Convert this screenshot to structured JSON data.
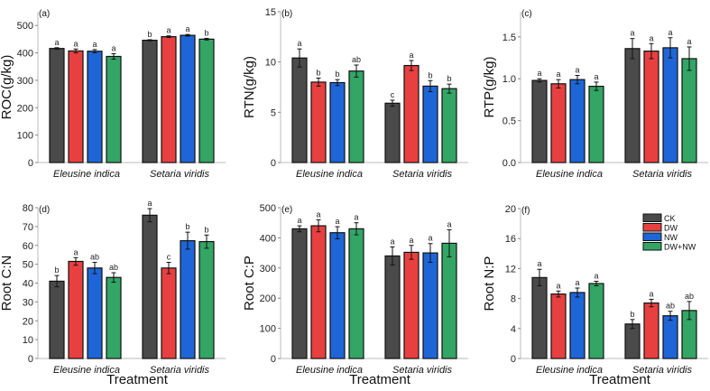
{
  "chart_data": [
    {
      "panel": "(a)",
      "type": "bar",
      "ylabel": "ROC(g/kg)",
      "xlabel": "",
      "ylim": [
        0,
        550
      ],
      "yticks": [
        0,
        100,
        200,
        300,
        400,
        500
      ],
      "categories": [
        "Eleusine indica",
        "Setaria viridis"
      ],
      "series": [
        {
          "name": "CK",
          "values": [
            416,
            446
          ],
          "errors": [
            3,
            2
          ],
          "letters": [
            "a",
            "b"
          ]
        },
        {
          "name": "DW",
          "values": [
            407,
            459
          ],
          "errors": [
            7,
            3
          ],
          "letters": [
            "a",
            "a"
          ]
        },
        {
          "name": "NW",
          "values": [
            406,
            464
          ],
          "errors": [
            6,
            3
          ],
          "letters": [
            "a",
            "a"
          ]
        },
        {
          "name": "DW+NW",
          "values": [
            387,
            450
          ],
          "errors": [
            10,
            3
          ],
          "letters": [
            "a",
            "b"
          ]
        }
      ]
    },
    {
      "panel": "(b)",
      "type": "bar",
      "ylabel": "RTN(g/kg)",
      "xlabel": "",
      "ylim": [
        0,
        15
      ],
      "yticks": [
        0,
        5,
        10,
        15
      ],
      "categories": [
        "Eleusine indica",
        "Setaria viridis"
      ],
      "series": [
        {
          "name": "CK",
          "values": [
            10.4,
            5.9
          ],
          "errors": [
            0.9,
            0.3
          ],
          "letters": [
            "a",
            "c"
          ]
        },
        {
          "name": "DW",
          "values": [
            8.0,
            9.65
          ],
          "errors": [
            0.4,
            0.5
          ],
          "letters": [
            "b",
            "a"
          ]
        },
        {
          "name": "NW",
          "values": [
            7.95,
            7.6
          ],
          "errors": [
            0.3,
            0.55
          ],
          "letters": [
            "b",
            "b"
          ]
        },
        {
          "name": "DW+NW",
          "values": [
            9.1,
            7.35
          ],
          "errors": [
            0.6,
            0.45
          ],
          "letters": [
            "ab",
            "b"
          ]
        }
      ]
    },
    {
      "panel": "(c)",
      "type": "bar",
      "ylabel": "RTP(g/kg)",
      "xlabel": "",
      "ylim": [
        0,
        1.8
      ],
      "yticks": [
        "0.0",
        "0.5",
        "1.0",
        "1.5"
      ],
      "categories": [
        "Eleusine indica",
        "Setaria viridis"
      ],
      "series": [
        {
          "name": "CK",
          "values": [
            0.98,
            1.36
          ],
          "errors": [
            0.02,
            0.12
          ],
          "letters": [
            "a",
            "a"
          ]
        },
        {
          "name": "DW",
          "values": [
            0.94,
            1.33
          ],
          "errors": [
            0.05,
            0.09
          ],
          "letters": [
            "a",
            "a"
          ]
        },
        {
          "name": "NW",
          "values": [
            0.99,
            1.37
          ],
          "errors": [
            0.05,
            0.12
          ],
          "letters": [
            "a",
            "a"
          ]
        },
        {
          "name": "DW+NW",
          "values": [
            0.91,
            1.24
          ],
          "errors": [
            0.05,
            0.14
          ],
          "letters": [
            "a",
            "a"
          ]
        }
      ]
    },
    {
      "panel": "(d)",
      "type": "bar",
      "ylabel": "Root C:N",
      "xlabel": "Treatment",
      "ylim": [
        0,
        80
      ],
      "yticks": [
        0,
        10,
        20,
        30,
        40,
        50,
        60,
        70,
        80
      ],
      "categories": [
        "Eleusine indica",
        "Setaria viridis"
      ],
      "series": [
        {
          "name": "CK",
          "values": [
            41,
            76
          ],
          "errors": [
            3,
            3.5
          ],
          "letters": [
            "b",
            "a"
          ]
        },
        {
          "name": "DW",
          "values": [
            51.5,
            48
          ],
          "errors": [
            2,
            3
          ],
          "letters": [
            "a",
            "c"
          ]
        },
        {
          "name": "NW",
          "values": [
            48,
            62.5
          ],
          "errors": [
            3,
            4.5
          ],
          "letters": [
            "ab",
            "b"
          ]
        },
        {
          "name": "DW+NW",
          "values": [
            43,
            62
          ],
          "errors": [
            2.5,
            3.5
          ],
          "letters": [
            "ab",
            "b"
          ]
        }
      ]
    },
    {
      "panel": "(e)",
      "type": "bar",
      "ylabel": "Root C:P",
      "xlabel": "Treatment",
      "ylim": [
        0,
        500
      ],
      "yticks": [
        0,
        100,
        200,
        300,
        400,
        500
      ],
      "categories": [
        "Eleusine indica",
        "Setaria viridis"
      ],
      "series": [
        {
          "name": "CK",
          "values": [
            430,
            340
          ],
          "errors": [
            10,
            30
          ],
          "letters": [
            "a",
            "a"
          ]
        },
        {
          "name": "DW",
          "values": [
            440,
            352
          ],
          "errors": [
            20,
            23
          ],
          "letters": [
            "a",
            "a"
          ]
        },
        {
          "name": "NW",
          "values": [
            417,
            350
          ],
          "errors": [
            20,
            31
          ],
          "letters": [
            "a",
            "a"
          ]
        },
        {
          "name": "DW+NW",
          "values": [
            430,
            382
          ],
          "errors": [
            20,
            45
          ],
          "letters": [
            "a",
            "a"
          ]
        }
      ]
    },
    {
      "panel": "(f)",
      "type": "bar",
      "ylabel": "Root N:P",
      "xlabel": "Treatment",
      "ylim": [
        0,
        20
      ],
      "yticks": [
        0,
        4,
        8,
        12,
        16,
        20
      ],
      "categories": [
        "Eleusine indica",
        "Setaria viridis"
      ],
      "legend": "top-right",
      "series": [
        {
          "name": "CK",
          "values": [
            10.8,
            4.6
          ],
          "errors": [
            1.1,
            0.6
          ],
          "letters": [
            "a",
            "b"
          ]
        },
        {
          "name": "DW",
          "values": [
            8.6,
            7.4
          ],
          "errors": [
            0.4,
            0.5
          ],
          "letters": [
            "a",
            "a"
          ]
        },
        {
          "name": "NW",
          "values": [
            8.8,
            5.7
          ],
          "errors": [
            0.6,
            0.6
          ],
          "letters": [
            "a",
            "ab"
          ]
        },
        {
          "name": "DW+NW",
          "values": [
            10.0,
            6.4
          ],
          "errors": [
            0.3,
            1.2
          ],
          "letters": [
            "a",
            "ab"
          ]
        }
      ]
    }
  ],
  "colors": {
    "CK": "#4a4a4a",
    "DW": "#e84040",
    "NW": "#1e66d8",
    "DW+NW": "#33a565"
  }
}
